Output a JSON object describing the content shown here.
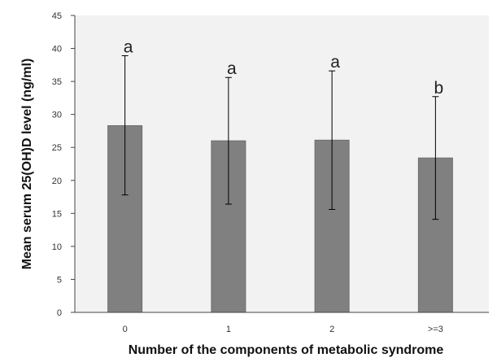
{
  "chart_data": {
    "type": "bar",
    "title": "",
    "xlabel": "Number of the components of metabolic syndrome",
    "ylabel": "Mean serum 25(OH)D level (ng/ml)",
    "ylim": [
      0,
      45
    ],
    "yticks": [
      0,
      5,
      10,
      15,
      20,
      25,
      30,
      35,
      40,
      45
    ],
    "categories": [
      "0",
      "1",
      "2",
      ">=3"
    ],
    "values": [
      28.3,
      26.0,
      26.1,
      23.4
    ],
    "error_low": [
      17.8,
      16.4,
      15.6,
      14.1
    ],
    "error_high": [
      38.9,
      35.6,
      36.6,
      32.7
    ],
    "significance_labels": [
      "a",
      "a",
      "a",
      "b"
    ],
    "grid": false,
    "legend": "none",
    "bar_color": "#808080",
    "plot_background": "#f2f2f2"
  }
}
